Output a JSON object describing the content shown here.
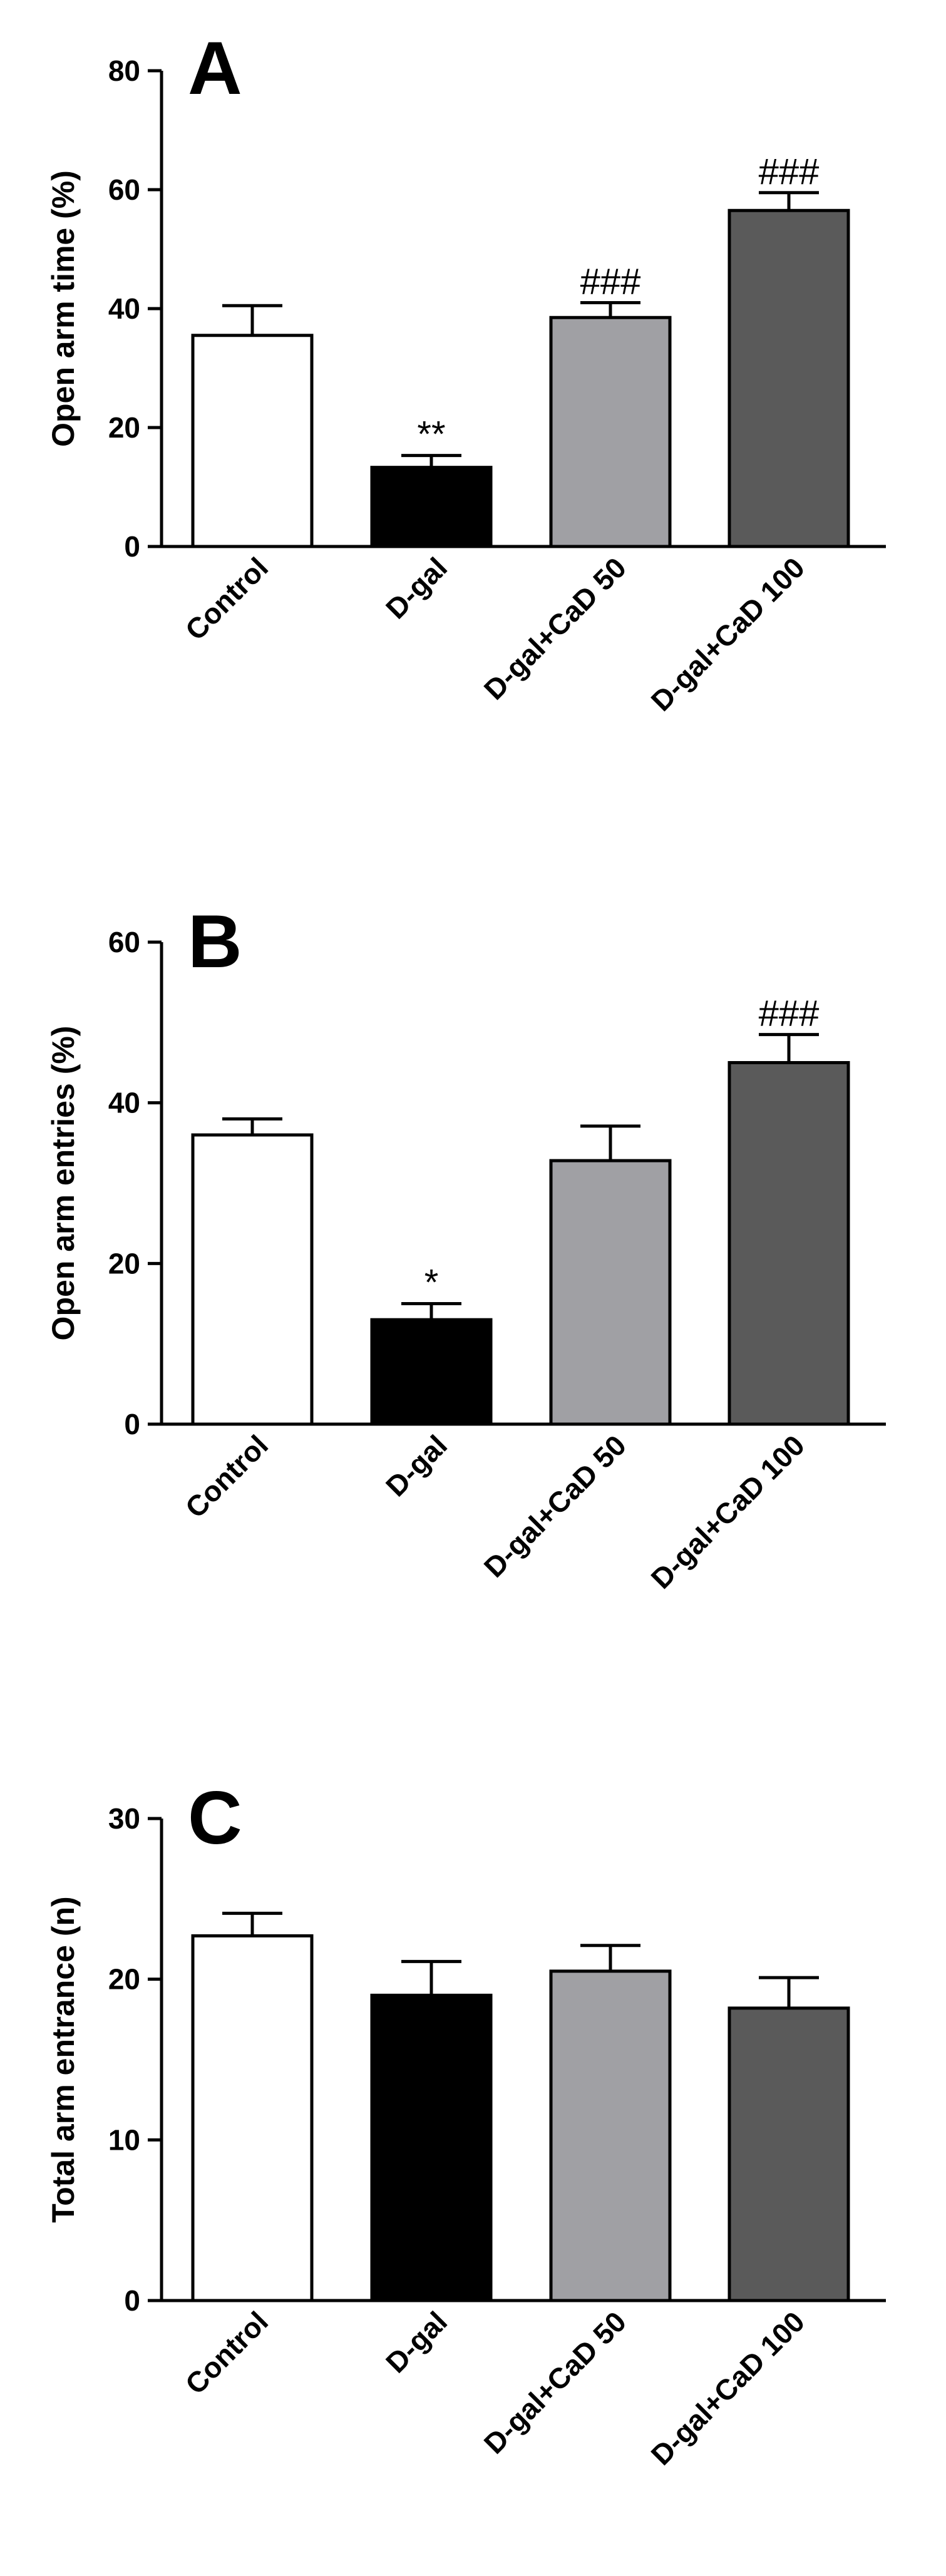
{
  "chart_data": [
    {
      "panel": "A",
      "type": "bar",
      "ylabel": "Open arm time (%)",
      "ylim": [
        0,
        80
      ],
      "yticks": [
        0,
        20,
        40,
        60,
        80
      ],
      "categories": [
        "Control",
        "D-gal",
        "D-gal+CaD 50",
        "D-gal+CaD 100"
      ],
      "values": [
        35.5,
        13.3,
        38.5,
        56.5
      ],
      "errors": [
        5.0,
        2.0,
        2.5,
        3.0
      ],
      "annotations": [
        "",
        "**",
        "###",
        "###"
      ],
      "bar_colors": [
        "#ffffff",
        "#000000",
        "#a0a0a4",
        "#5a5a5a"
      ]
    },
    {
      "panel": "B",
      "type": "bar",
      "ylabel": "Open arm entries (%)",
      "ylim": [
        0,
        60
      ],
      "yticks": [
        0,
        20,
        40,
        60
      ],
      "categories": [
        "Control",
        "D-gal",
        "D-gal+CaD 50",
        "D-gal+CaD 100"
      ],
      "values": [
        36.0,
        13.0,
        32.8,
        45.0
      ],
      "errors": [
        2.0,
        2.0,
        4.3,
        3.5
      ],
      "annotations": [
        "",
        "*",
        "",
        "###"
      ],
      "bar_colors": [
        "#ffffff",
        "#000000",
        "#a0a0a4",
        "#5a5a5a"
      ]
    },
    {
      "panel": "C",
      "type": "bar",
      "ylabel": "Total arm entrance (n)",
      "ylim": [
        0,
        30
      ],
      "yticks": [
        0,
        10,
        20,
        30
      ],
      "categories": [
        "Control",
        "D-gal",
        "D-gal+CaD 50",
        "D-gal+CaD 100"
      ],
      "values": [
        22.7,
        19.0,
        20.5,
        18.2
      ],
      "errors": [
        1.4,
        2.1,
        1.6,
        1.9
      ],
      "annotations": [
        "",
        "",
        "",
        ""
      ],
      "bar_colors": [
        "#ffffff",
        "#000000",
        "#a0a0a4",
        "#5a5a5a"
      ]
    }
  ]
}
